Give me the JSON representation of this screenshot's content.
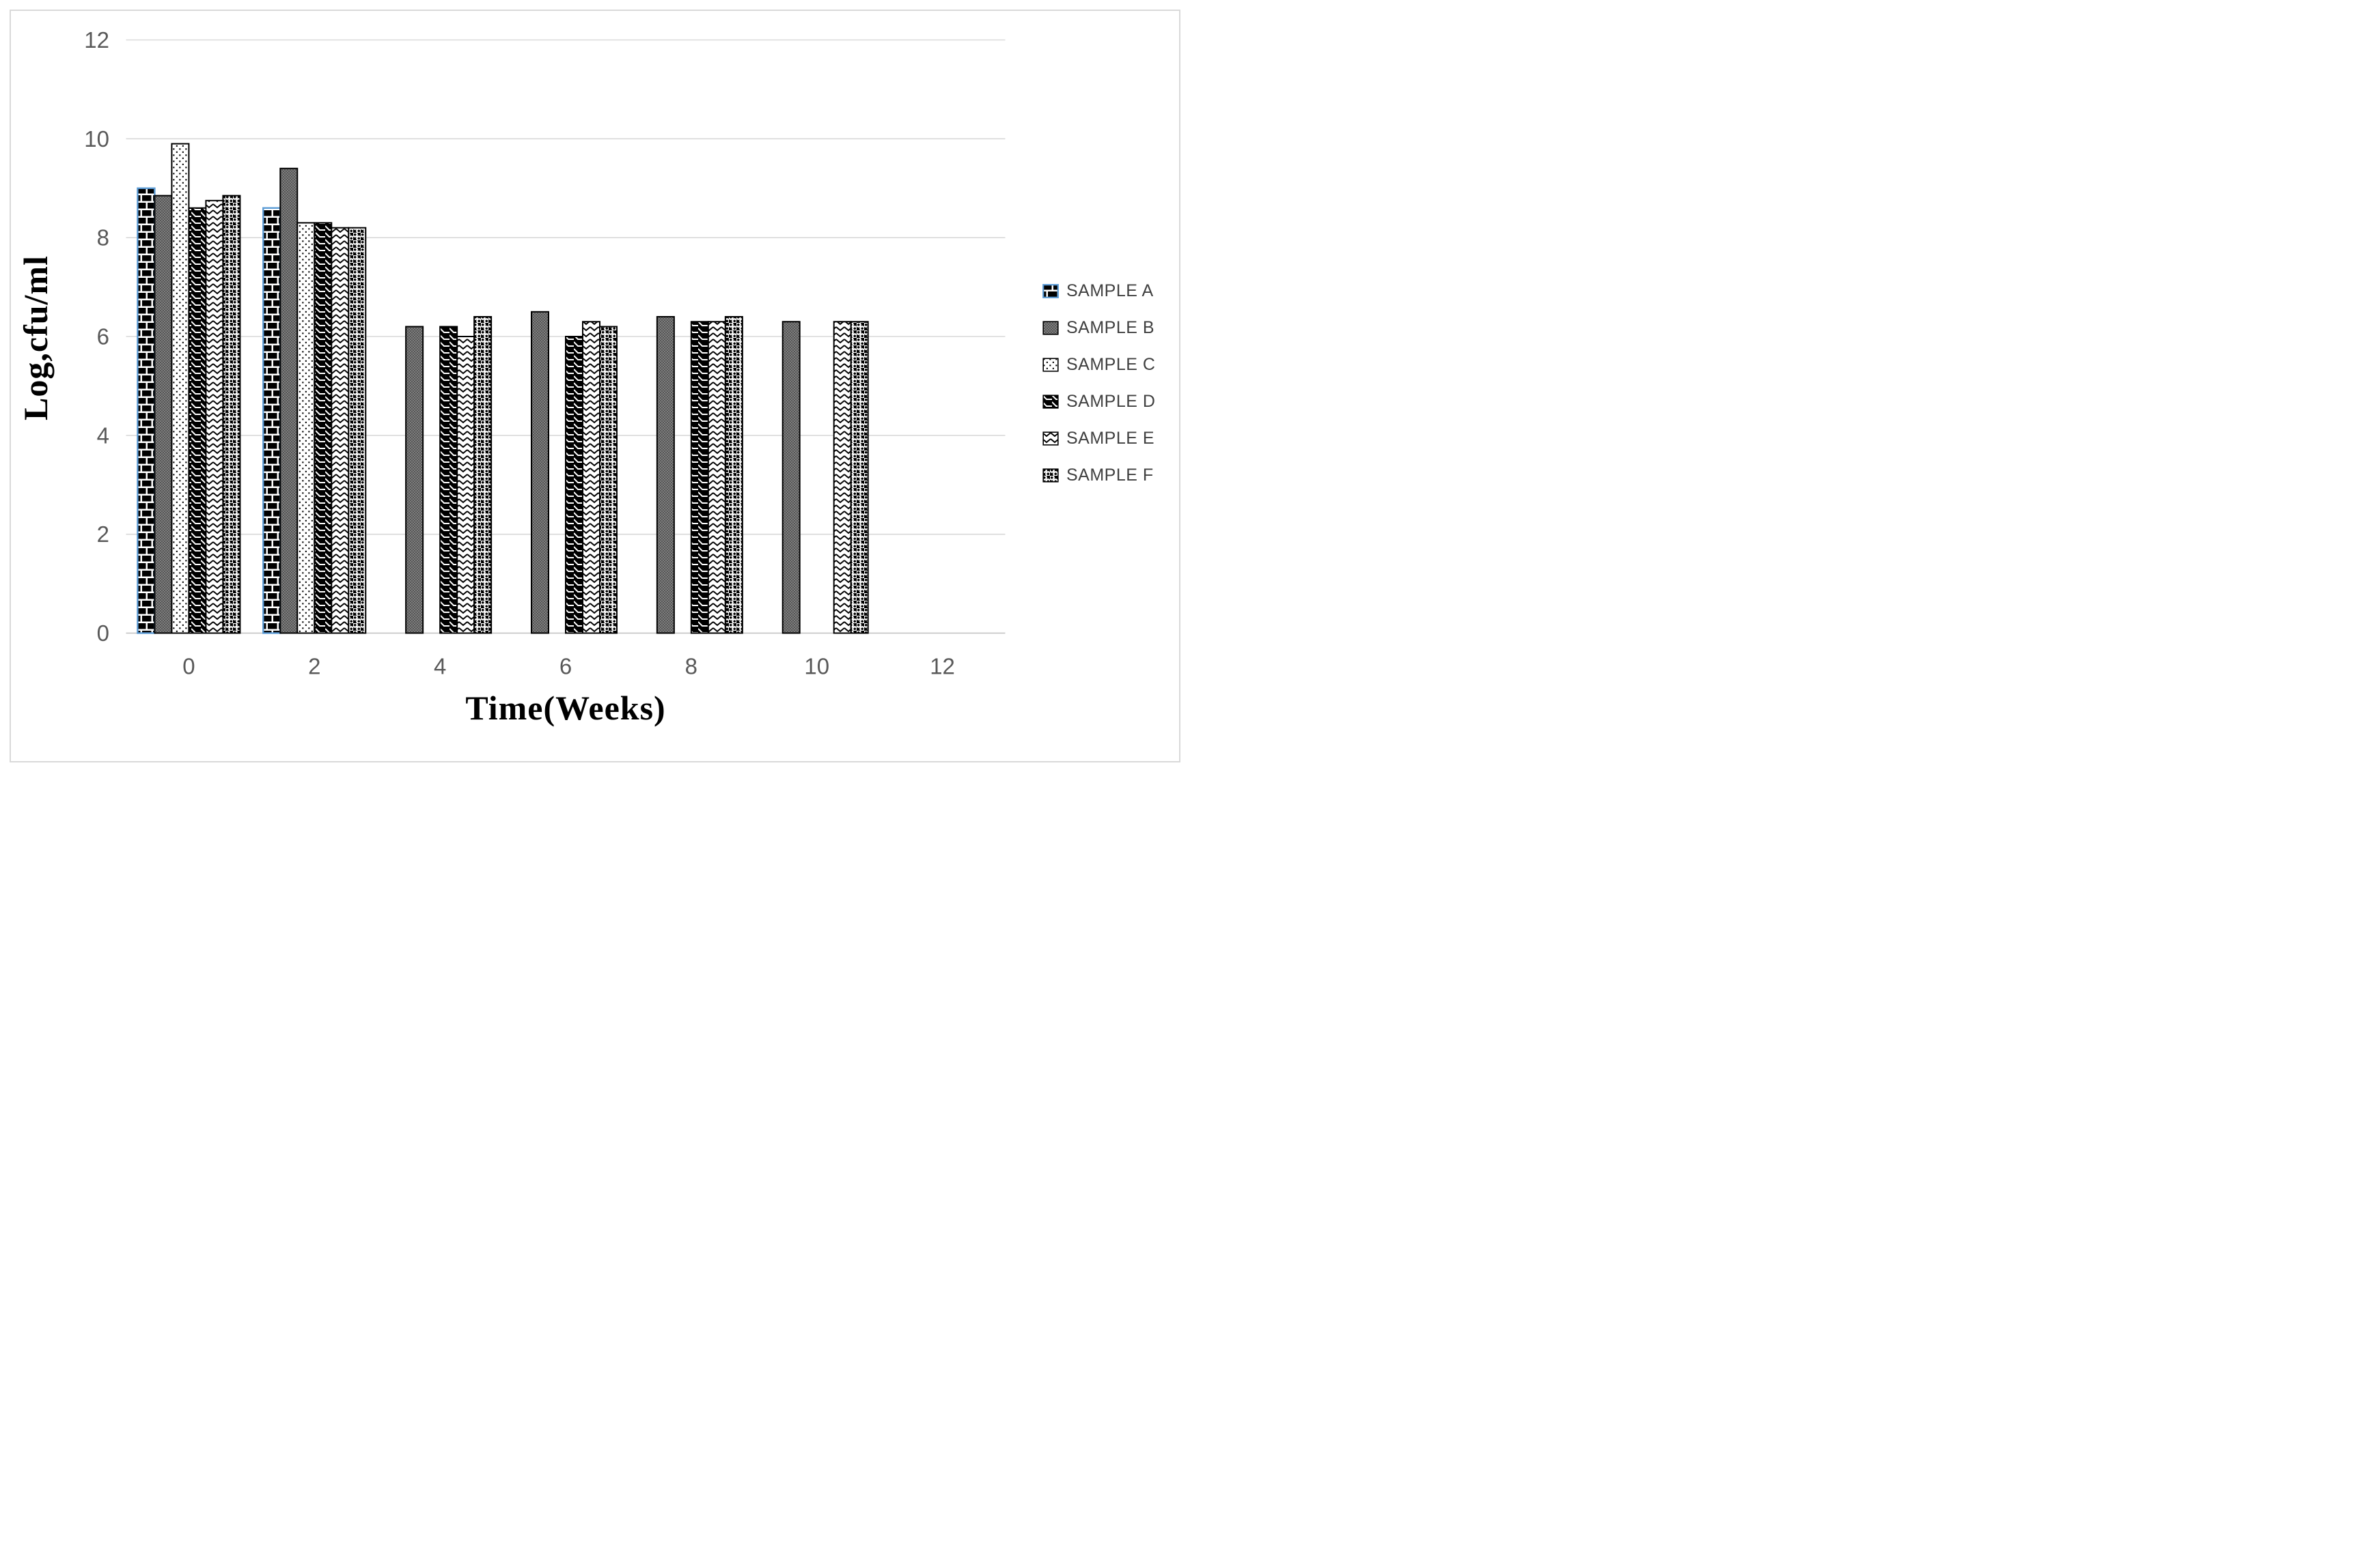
{
  "chart_data": {
    "type": "bar",
    "title": "",
    "xlabel": "Time(Weeks)",
    "ylabel": "Log,cfu/ml",
    "categories": [
      "0",
      "2",
      "4",
      "6",
      "8",
      "10",
      "12"
    ],
    "ylim": [
      0,
      12
    ],
    "yticks": [
      0,
      2,
      4,
      6,
      8,
      10,
      12
    ],
    "grid": true,
    "legend_position": "right",
    "series": [
      {
        "name": "SAMPLE A",
        "pattern": "brick",
        "outline": "#5B9BD5",
        "values": [
          9.0,
          8.6,
          null,
          null,
          null,
          null,
          null
        ]
      },
      {
        "name": "SAMPLE B",
        "pattern": "gray-checker",
        "outline": "#000000",
        "values": [
          8.85,
          9.4,
          6.2,
          6.5,
          6.4,
          6.3,
          null
        ]
      },
      {
        "name": "SAMPLE C",
        "pattern": "dotted",
        "outline": "#000000",
        "values": [
          9.9,
          8.3,
          null,
          null,
          null,
          null,
          null
        ]
      },
      {
        "name": "SAMPLE D",
        "pattern": "shingle",
        "outline": "#000000",
        "values": [
          8.6,
          8.3,
          6.2,
          6.0,
          6.3,
          null,
          null
        ]
      },
      {
        "name": "SAMPLE E",
        "pattern": "wave",
        "outline": "#000000",
        "values": [
          8.75,
          8.2,
          6.0,
          6.3,
          6.3,
          6.3,
          null
        ]
      },
      {
        "name": "SAMPLE F",
        "pattern": "spheres",
        "outline": "#000000",
        "values": [
          8.85,
          8.2,
          6.4,
          6.2,
          6.4,
          6.3,
          null
        ]
      }
    ],
    "colors": {
      "gridline": "#d9d9d9",
      "baseline": "#bfbfbf",
      "tick_label": "#595959",
      "axis_title": "#000000",
      "legend_text": "#404040",
      "figure_border": "#d9d9d9",
      "background": "#ffffff",
      "sample_a_outline": "#5B9BD5"
    }
  }
}
